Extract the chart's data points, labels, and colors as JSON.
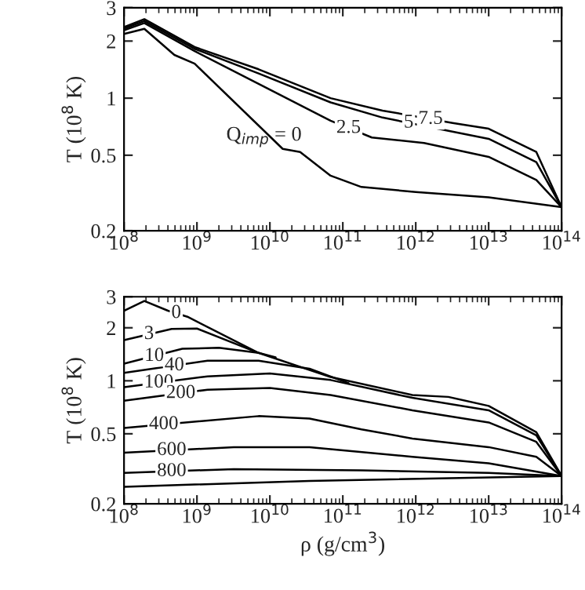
{
  "chart_data": [
    {
      "type": "line",
      "ylabel": "T (10$^{8}$ K)",
      "log": "xy",
      "xlim": [
        100000000.0,
        100000000000000.0
      ],
      "ylim": [
        0.2,
        3
      ],
      "xticks": [
        {
          "value": 100000000.0,
          "label": "10$^{8}$"
        },
        {
          "value": 1000000000.0,
          "label": "10$^{9}$"
        },
        {
          "value": 10000000000.0,
          "label": "10$^{10}$"
        },
        {
          "value": 100000000000.0,
          "label": "10$^{11}$"
        },
        {
          "value": 1000000000000.0,
          "label": "10$^{12}$"
        },
        {
          "value": 10000000000000.0,
          "label": "10$^{13}$"
        },
        {
          "value": 100000000000000.0,
          "label": "10$^{14}$"
        }
      ],
      "yticks": [
        0.2,
        0.5,
        1,
        2,
        3
      ],
      "grid": false,
      "marker": "none",
      "line_style": "solid",
      "series": [
        {
          "color": "#000000",
          "x": [
            100000000.0,
            190000000.0,
            490000000.0,
            930000000.0,
            15000000000.0,
            26000000000.0,
            68000000000.0,
            180000000000.0,
            1000000000000.0,
            10000000000000.0,
            100000000000000.0
          ],
          "values": [
            2.18,
            2.32,
            1.69,
            1.52,
            0.54,
            0.52,
            0.39,
            0.34,
            0.32,
            0.3,
            0.266
          ]
        },
        {
          "color": "#000000",
          "x": [
            100000000.0,
            190000000.0,
            930000000.0,
            7000000000.0,
            68000000000.0,
            250000000000.0,
            1300000000000.0,
            10000000000000.0,
            45000000000000.0,
            100000000000000.0
          ],
          "values": [
            2.28,
            2.49,
            1.77,
            1.19,
            0.76,
            0.62,
            0.58,
            0.49,
            0.37,
            0.266
          ]
        },
        {
          "color": "#000000",
          "x": [
            100000000.0,
            190000000.0,
            930000000.0,
            7000000000.0,
            68000000000.0,
            350000000000.0,
            2000000000000.0,
            10000000000000.0,
            45000000000000.0,
            100000000000000.0
          ],
          "values": [
            2.33,
            2.55,
            1.82,
            1.35,
            0.95,
            0.79,
            0.69,
            0.61,
            0.46,
            0.266
          ]
        },
        {
          "color": "#000000",
          "x": [
            100000000.0,
            190000000.0,
            930000000.0,
            7000000000.0,
            68000000000.0,
            350000000000.0,
            3200000000000.0,
            10000000000000.0,
            45000000000000.0,
            100000000000000.0
          ],
          "values": [
            2.37,
            2.61,
            1.86,
            1.42,
            1.0,
            0.86,
            0.74,
            0.69,
            0.52,
            0.266
          ]
        }
      ],
      "annotations": [
        "Q$_{imp}$ = 0",
        {
          "text": "2.5",
          "x": 120000000000.0,
          "y": 0.695
        },
        {
          "text": "5",
          "x": 800000000000.0,
          "y": 0.741
        },
        {
          "text": "7.5",
          "x": 1600000000000.0,
          "y": 0.775
        }
      ]
    },
    {
      "type": "line",
      "xlabel": "ρ (g/cm$^{3}$)",
      "ylabel": "T (10$^{8}$ K)",
      "log": "xy",
      "xlim": [
        100000000.0,
        100000000000000.0
      ],
      "ylim": [
        0.2,
        3
      ],
      "xticks": [
        {
          "value": 100000000.0,
          "label": "10$^{8}$"
        },
        {
          "value": 1000000000.0,
          "label": "10$^{9}$"
        },
        {
          "value": 10000000000.0,
          "label": "10$^{10}$"
        },
        {
          "value": 100000000000.0,
          "label": "10$^{11}$"
        },
        {
          "value": 1000000000000.0,
          "label": "10$^{12}$"
        },
        {
          "value": 10000000000000.0,
          "label": "10$^{13}$"
        },
        {
          "value": 100000000000000.0,
          "label": "10$^{14}$"
        }
      ],
      "yticks": [
        0.2,
        0.5,
        1,
        2,
        3
      ],
      "grid": false,
      "marker": "none",
      "line_style": "solid",
      "series": [
        {
          "color": "#000000",
          "x": [
            100000000.0,
            190000000.0,
            400000000.0,
            740000000.0,
            7000000000.0,
            68000000000.0,
            900000000000.0,
            2800000000000.0,
            10000000000000.0,
            45000000000000.0,
            100000000000000.0
          ],
          "values": [
            2.5,
            2.84,
            2.5,
            2.31,
            1.44,
            1.05,
            0.83,
            0.81,
            0.72,
            0.51,
            0.288
          ]
        },
        {
          "color": "#000000",
          "x": [
            100000000.0,
            450000000.0,
            1000000000.0,
            7000000000.0
          ],
          "values": [
            1.7,
            1.97,
            1.98,
            1.44
          ]
        },
        {
          "color": "#000000",
          "x": [
            100000000.0,
            630000000.0,
            2000000000.0,
            7000000000.0,
            12000000000.0
          ],
          "values": [
            1.25,
            1.52,
            1.54,
            1.44,
            1.36
          ]
        },
        {
          "color": "#000000",
          "x": [
            100000000.0,
            1400000000.0,
            7000000000.0,
            35000000000.0,
            120000000000.0
          ],
          "values": [
            1.11,
            1.3,
            1.3,
            1.17,
            0.97
          ]
        },
        {
          "color": "#000000",
          "x": [
            100000000.0,
            1400000000.0,
            10000000000.0,
            68000000000.0,
            900000000000.0,
            10000000000000.0,
            45000000000000.0,
            100000000000000.0
          ],
          "values": [
            0.92,
            1.06,
            1.1,
            1.01,
            0.8,
            0.68,
            0.49,
            0.288
          ]
        },
        {
          "color": "#000000",
          "x": [
            100000000.0,
            1400000000.0,
            10000000000.0,
            68000000000.0,
            900000000000.0,
            10000000000000.0,
            45000000000000.0,
            100000000000000.0
          ],
          "values": [
            0.77,
            0.89,
            0.91,
            0.83,
            0.68,
            0.58,
            0.45,
            0.288
          ]
        },
        {
          "color": "#000000",
          "x": [
            100000000.0,
            7000000000.0,
            35000000000.0,
            180000000000.0,
            900000000000.0,
            10000000000000.0,
            45000000000000.0,
            100000000000000.0
          ],
          "values": [
            0.54,
            0.63,
            0.61,
            0.53,
            0.47,
            0.42,
            0.37,
            0.288
          ]
        },
        {
          "color": "#000000",
          "x": [
            100000000.0,
            3200000000.0,
            35000000000.0,
            900000000000.0,
            10000000000000.0,
            100000000000000.0
          ],
          "values": [
            0.39,
            0.42,
            0.42,
            0.37,
            0.34,
            0.288
          ]
        },
        {
          "color": "#000000",
          "x": [
            100000000.0,
            3200000000.0,
            180000000000.0,
            10000000000000.0,
            100000000000000.0
          ],
          "values": [
            0.3,
            0.315,
            0.31,
            0.3,
            0.288
          ]
        },
        {
          "color": "#000000",
          "x": [
            100000000.0,
            35000000000.0,
            100000000000000.0
          ],
          "values": [
            0.25,
            0.27,
            0.288
          ]
        }
      ],
      "annotations": [
        {
          "text": "0",
          "x": 520000000.0,
          "y": 2.42
        },
        {
          "text": "3",
          "x": 220000000.0,
          "y": 1.84
        },
        {
          "text": "10",
          "x": 260000000.0,
          "y": 1.38
        },
        {
          "text": "40",
          "x": 490000000.0,
          "y": 1.22
        },
        {
          "text": "100",
          "x": 300000000.0,
          "y": 0.976
        },
        {
          "text": "200",
          "x": 600000000.0,
          "y": 0.85
        },
        {
          "text": "400",
          "x": 350000000.0,
          "y": 0.565
        },
        {
          "text": "600",
          "x": 450000000.0,
          "y": 0.403
        },
        {
          "text": "800",
          "x": 450000000.0,
          "y": 0.306
        }
      ]
    }
  ]
}
